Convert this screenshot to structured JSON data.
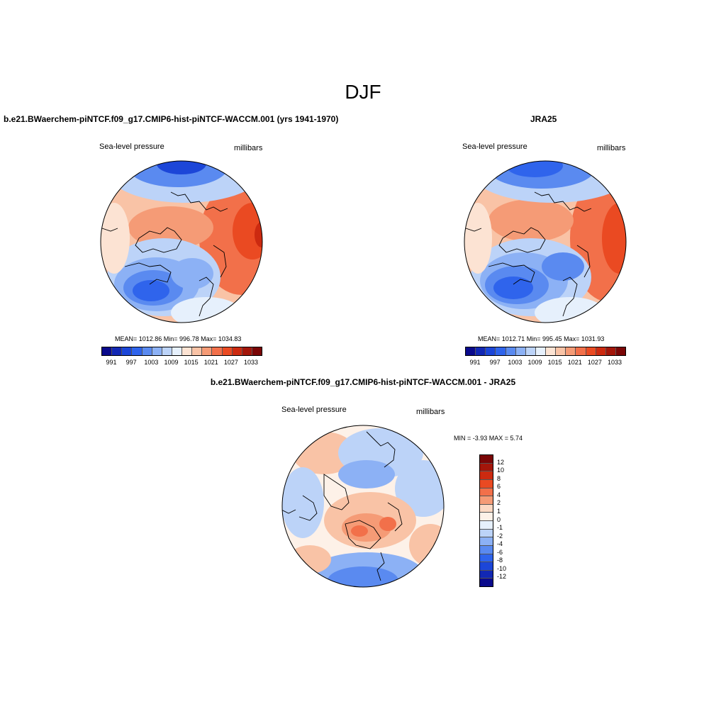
{
  "title": "DJF",
  "panels": [
    {
      "title": "b.e21.BWaerchem-piNTCF.f09_g17.CMIP6-hist-piNTCF-WACCM.001 (yrs 1941-1970)",
      "left_label": "Sea-level pressure",
      "right_label": "millibars",
      "stats": "MEAN= 1012.86   Min= 996.78   Max= 1034.83",
      "colorbar_ticks": [
        "991",
        "997",
        "1003",
        "1009",
        "1015",
        "1021",
        "1027",
        "1033"
      ]
    },
    {
      "title": "JRA25",
      "left_label": "Sea-level pressure",
      "right_label": "millibars",
      "stats": "MEAN= 1012.71   Min= 995.45   Max= 1031.93",
      "colorbar_ticks": [
        "991",
        "997",
        "1003",
        "1009",
        "1015",
        "1021",
        "1027",
        "1033"
      ]
    },
    {
      "title": "b.e21.BWaerchem-piNTCF.f09_g17.CMIP6-hist-piNTCF-WACCM.001 - JRA25",
      "left_label": "Sea-level pressure",
      "right_label": "millibars",
      "stats": "MIN =  -3.93 MAX =   5.74",
      "colorbar_ticks": [
        "12",
        "10",
        "8",
        "6",
        "4",
        "2",
        "1",
        "0",
        "-1",
        "-2",
        "-4",
        "-6",
        "-8",
        "-10",
        "-12"
      ]
    }
  ],
  "colors": {
    "abs_scale": [
      "#0a0a8c",
      "#1228b4",
      "#1c46d8",
      "#2f64ec",
      "#5a8af0",
      "#8cb1f5",
      "#bcd3f8",
      "#e6f0fc",
      "#fce3d3",
      "#f9c3a6",
      "#f59b76",
      "#f2704a",
      "#ea4a22",
      "#cc2a10",
      "#a3160a",
      "#7a0606"
    ],
    "diff_scale": [
      "#7a0606",
      "#a3160a",
      "#cc2a10",
      "#ea4a22",
      "#f2704a",
      "#f59b76",
      "#fcd9c3",
      "#fdf1e8",
      "#e6f0fc",
      "#bcd3f8",
      "#8cb1f5",
      "#5a8af0",
      "#2f64ec",
      "#1c46d8",
      "#1228b4",
      "#0a0a8c"
    ],
    "land_outline": "#000000"
  }
}
